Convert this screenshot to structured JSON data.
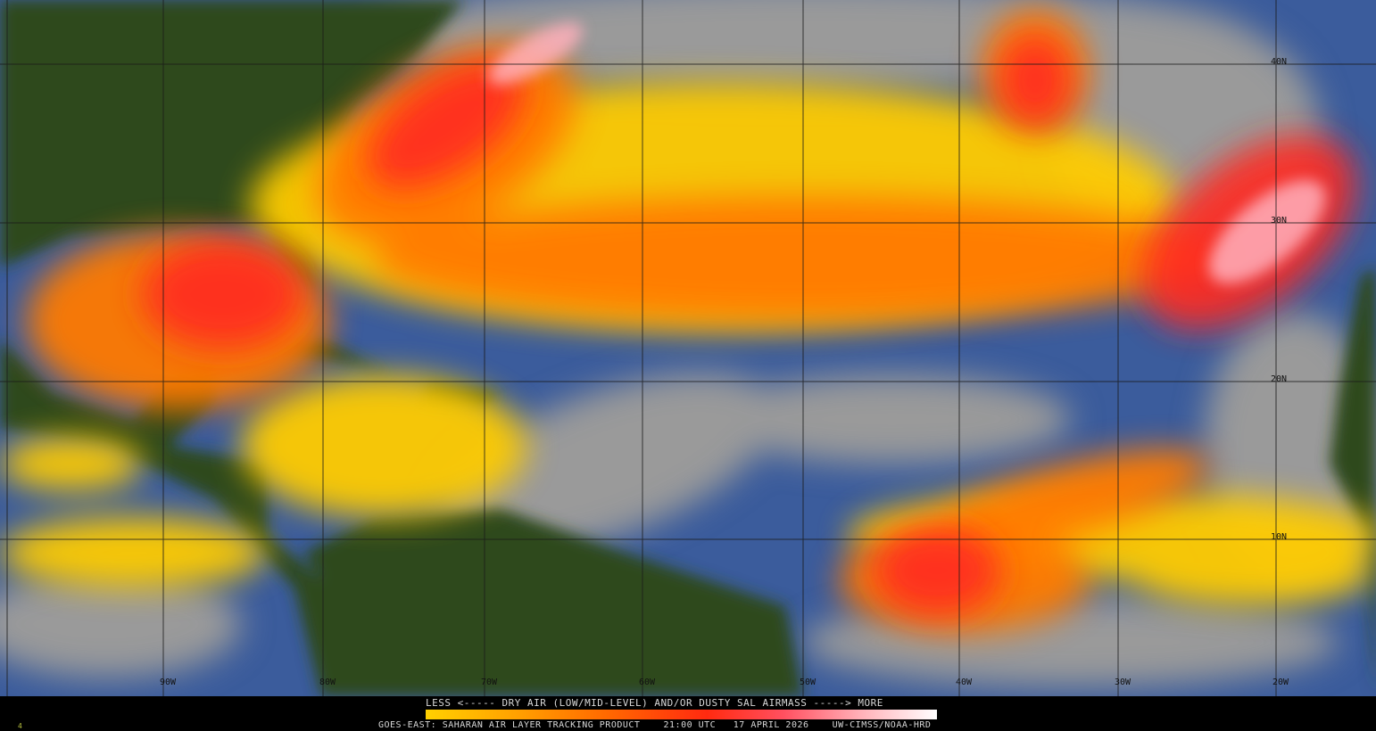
{
  "map": {
    "longitude_labels": [
      "90W",
      "80W",
      "70W",
      "60W",
      "50W",
      "40W",
      "30W",
      "20W"
    ],
    "latitude_labels": [
      "40N",
      "30N",
      "20N",
      "10N"
    ],
    "colors": {
      "ocean": "#3b5c9c",
      "land": "#2e4a1a",
      "cloud": "#9a9a9a",
      "low": "#ffd000",
      "mid": "#ff6a00",
      "high": "#ff2020",
      "max": "#ffc8d0"
    }
  },
  "legend": {
    "title": "LESS <----- DRY AIR (LOW/MID-LEVEL) AND/OR DUSTY SAL AIRMASS -----> MORE",
    "footer": "GOES-EAST: SAHARAN AIR LAYER TRACKING PRODUCT    21:00 UTC   17 APRIL 2026    UW-CIMSS/NOAA-HRD",
    "corner_mark": "4"
  }
}
